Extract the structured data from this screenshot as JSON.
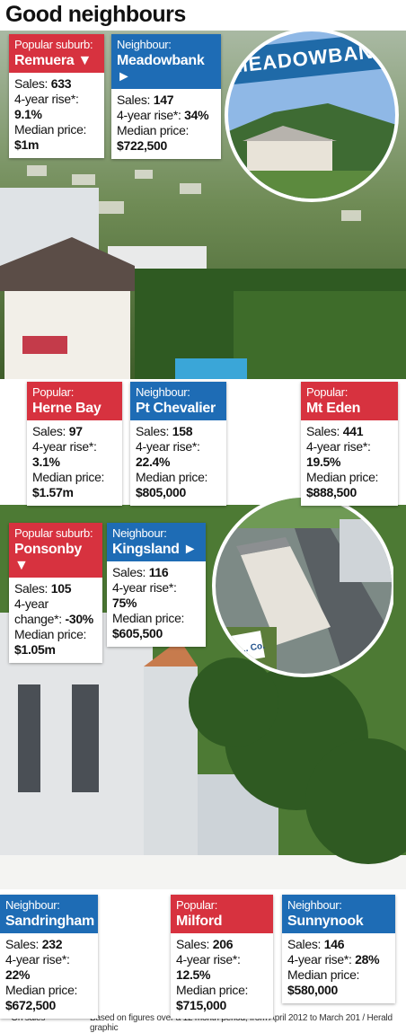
{
  "title": "Good neighbours",
  "sections": [
    {
      "photo_sign": "MEADOWBANK",
      "cards": [
        {
          "label": "Popular suburb:",
          "name": "Remuera ▼",
          "color": "#d7323f",
          "sales_label": "Sales:",
          "sales": "633",
          "rise_label": "4-year rise*:",
          "rise": "9.1%",
          "price_label": "Median price:",
          "price": "$1m"
        },
        {
          "label": "Neighbour:",
          "name": "Meadowbank ►",
          "color": "#1e6cb5",
          "sales_label": "Sales:",
          "sales": "147",
          "rise_label": "4-year rise*:",
          "rise": "34%",
          "price_label": "Median price:",
          "price": "$722,500"
        },
        {
          "label": "Popular:",
          "name": "Herne Bay",
          "color": "#d7323f",
          "sales_label": "Sales:",
          "sales": "97",
          "rise_label": "4-year rise*:",
          "rise": "3.1%",
          "price_label": "Median price:",
          "price": "$1.57m"
        },
        {
          "label": "Neighbour:",
          "name": "Pt Chevalier",
          "color": "#1e6cb5",
          "sales_label": "Sales:",
          "sales": "158",
          "rise_label": "4-year rise*:",
          "rise": "22.4%",
          "price_label": "Median price:",
          "price": "$805,000"
        },
        {
          "label": "Popular:",
          "name": "Mt Eden",
          "color": "#d7323f",
          "sales_label": "Sales:",
          "sales": "441",
          "rise_label": "4-year rise*:",
          "rise": "19.5%",
          "price_label": "Median price:",
          "price": "$888,500"
        }
      ]
    },
    {
      "photo_sign": "MACHINE... Co.",
      "cards": [
        {
          "label": "Popular suburb:",
          "name": "Ponsonby ▼",
          "color": "#d7323f",
          "sales_label": "Sales:",
          "sales": "105",
          "rise_label": "4-year change*:",
          "rise": "-30%",
          "price_label": "Median price:",
          "price": "$1.05m"
        },
        {
          "label": "Neighbour:",
          "name": "Kingsland ►",
          "color": "#1e6cb5",
          "sales_label": "Sales:",
          "sales": "116",
          "rise_label": "4-year rise*:",
          "rise": "75%",
          "price_label": "Median price:",
          "price": "$605,500"
        },
        {
          "label": "Neighbour:",
          "name": "Sandringham",
          "color": "#1e6cb5",
          "sales_label": "Sales:",
          "sales": "232",
          "rise_label": "4-year rise*:",
          "rise": "22%",
          "price_label": "Median price:",
          "price": "$672,500"
        },
        {
          "label": "Popular:",
          "name": "Milford",
          "color": "#d7323f",
          "sales_label": "Sales:",
          "sales": "206",
          "rise_label": "4-year rise*:",
          "rise": "12.5%",
          "price_label": "Median price:",
          "price": "$715,000"
        },
        {
          "label": "Neighbour:",
          "name": "Sunnynook",
          "color": "#1e6cb5",
          "sales_label": "Sales:",
          "sales": "146",
          "rise_label": "4-year rise*:",
          "rise": "28%",
          "price_label": "Median price:",
          "price": "$580,000"
        }
      ]
    }
  ],
  "footer": {
    "note": "* On sales",
    "source": "Based on figures over a 12 month period, from April 2012 to March 201 / Herald graphic"
  }
}
